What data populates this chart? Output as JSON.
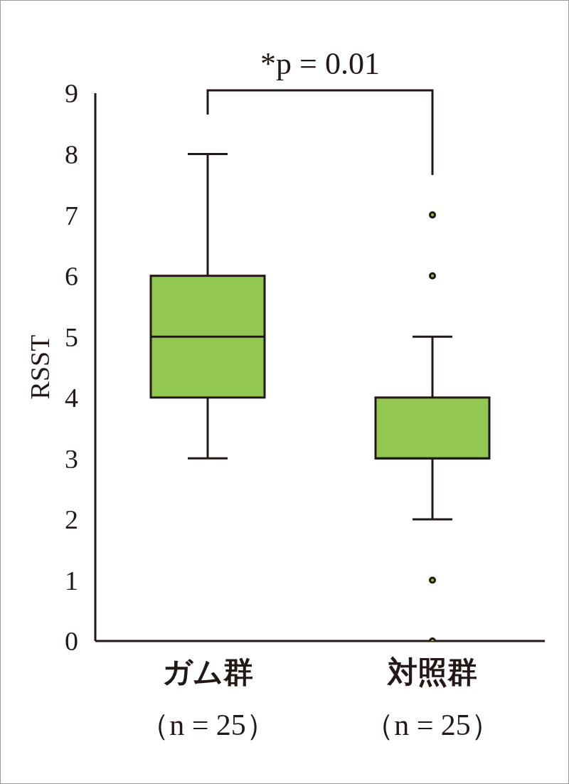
{
  "chart_data": {
    "type": "box",
    "categories": [
      "ガム群（n = 25）",
      "対照群（n = 25）"
    ],
    "boxes": [
      {
        "low": 3,
        "q1": 4,
        "median": 5,
        "q3": 6,
        "high": 8
      },
      {
        "low": 2,
        "q1": 3,
        "median": 3,
        "q3": 4,
        "high": 5,
        "outliers": [
          7,
          6,
          1,
          0
        ]
      }
    ],
    "color": "#92c852",
    "ylabel": "RSST",
    "ylim": [
      0,
      9
    ],
    "yticks": [
      0,
      1,
      2,
      3,
      4,
      5,
      6,
      7,
      8,
      9
    ],
    "annotations": [
      "*p = 0.01"
    ]
  }
}
